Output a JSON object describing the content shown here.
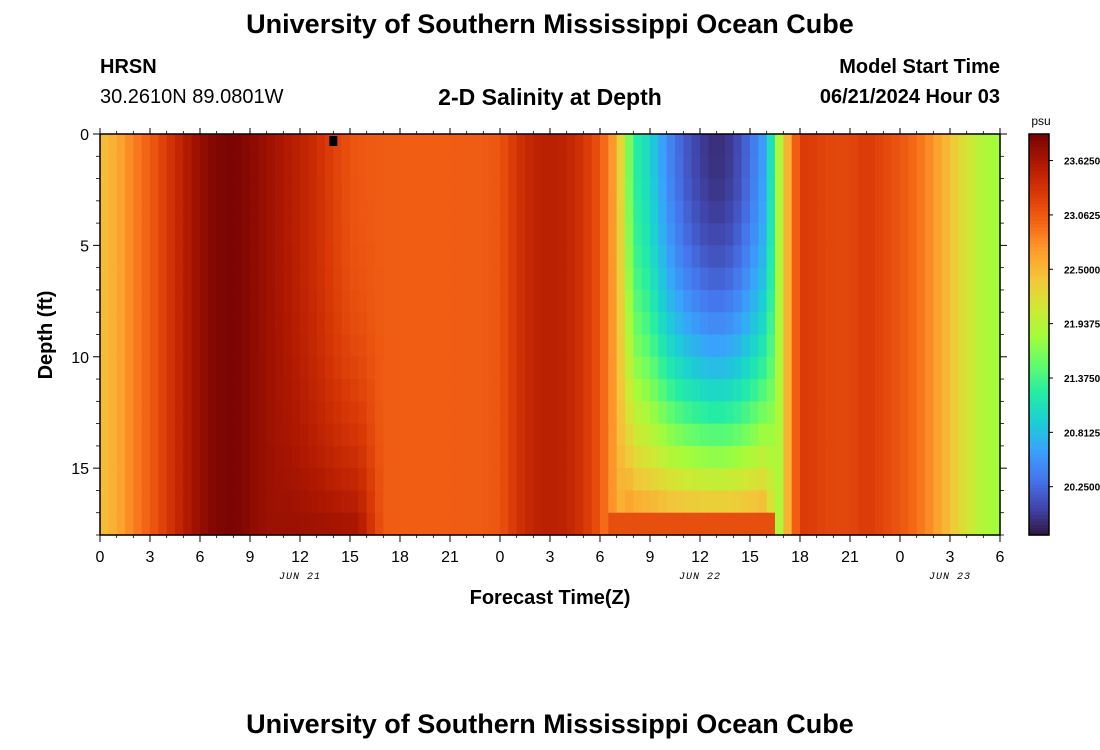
{
  "page": {
    "title": "University of Southern Mississippi Ocean Cube",
    "title_repeat": "University of Southern Mississippi Ocean Cube",
    "station": "HRSN",
    "coords": "30.2610N  89.0801W",
    "plot_title": "2-D Salinity at Depth",
    "model_start_label": "Model Start Time",
    "model_start_value": "06/21/2024 Hour 03"
  },
  "chart_data": {
    "type": "heatmap",
    "title": "2-D Salinity at Depth",
    "xlabel": "Forecast Time(Z)",
    "ylabel": "Depth (ft)",
    "x_range": [
      0,
      54
    ],
    "y_range": [
      0,
      18
    ],
    "x_ticks": [
      {
        "v": 0,
        "label": "0"
      },
      {
        "v": 3,
        "label": "3"
      },
      {
        "v": 6,
        "label": "6"
      },
      {
        "v": 9,
        "label": "9"
      },
      {
        "v": 12,
        "label": "12"
      },
      {
        "v": 15,
        "label": "15"
      },
      {
        "v": 18,
        "label": "18"
      },
      {
        "v": 21,
        "label": "21"
      },
      {
        "v": 24,
        "label": "0"
      },
      {
        "v": 27,
        "label": "3"
      },
      {
        "v": 30,
        "label": "6"
      },
      {
        "v": 33,
        "label": "9"
      },
      {
        "v": 36,
        "label": "12"
      },
      {
        "v": 39,
        "label": "15"
      },
      {
        "v": 42,
        "label": "18"
      },
      {
        "v": 45,
        "label": "21"
      },
      {
        "v": 48,
        "label": "0"
      },
      {
        "v": 51,
        "label": "3"
      },
      {
        "v": 54,
        "label": "6"
      }
    ],
    "date_labels": [
      {
        "v": 12,
        "label": "JUN 21"
      },
      {
        "v": 36,
        "label": "JUN 22"
      },
      {
        "v": 51,
        "label": "JUN 23"
      }
    ],
    "y_ticks": [
      {
        "v": 0,
        "label": "0"
      },
      {
        "v": 5,
        "label": "5"
      },
      {
        "v": 10,
        "label": "10"
      },
      {
        "v": 15,
        "label": "15"
      }
    ],
    "colorbar": {
      "unit": "psu",
      "range": [
        19.75,
        23.9
      ],
      "ticks": [
        "23.6250",
        "23.0625",
        "22.5000",
        "21.9375",
        "21.3750",
        "20.8125",
        "20.2500"
      ]
    },
    "surface_profile_psu": [
      [
        0,
        22.45
      ],
      [
        1,
        22.6
      ],
      [
        2,
        22.85
      ],
      [
        3,
        23.05
      ],
      [
        4,
        23.3
      ],
      [
        5,
        23.55
      ],
      [
        6,
        23.75
      ],
      [
        7,
        23.87
      ],
      [
        8,
        23.9
      ],
      [
        9,
        23.82
      ],
      [
        10,
        23.72
      ],
      [
        11,
        23.62
      ],
      [
        12,
        23.52
      ],
      [
        13,
        23.4
      ],
      [
        14,
        23.25
      ],
      [
        15,
        23.12
      ],
      [
        16,
        23.08
      ],
      [
        17,
        23.06
      ],
      [
        18,
        23.05
      ],
      [
        19,
        23.05
      ],
      [
        20,
        23.05
      ],
      [
        21,
        23.05
      ],
      [
        22,
        23.06
      ],
      [
        23,
        23.06
      ],
      [
        24,
        23.1
      ],
      [
        25,
        23.35
      ],
      [
        26,
        23.5
      ],
      [
        27,
        23.55
      ],
      [
        28,
        23.5
      ],
      [
        29,
        23.35
      ],
      [
        30,
        23.1
      ],
      [
        31,
        22.6
      ],
      [
        32,
        21.3
      ],
      [
        33,
        21.0
      ],
      [
        34,
        20.5
      ],
      [
        35,
        20.2
      ],
      [
        36,
        20.0
      ],
      [
        37,
        19.9
      ],
      [
        38,
        20.0
      ],
      [
        39,
        20.3
      ],
      [
        40,
        20.7
      ],
      [
        41,
        22.3
      ],
      [
        42,
        23.3
      ],
      [
        43,
        23.25
      ],
      [
        44,
        23.2
      ],
      [
        45,
        23.2
      ],
      [
        46,
        23.3
      ],
      [
        47,
        23.2
      ],
      [
        48,
        23.1
      ],
      [
        49,
        22.95
      ],
      [
        50,
        22.75
      ],
      [
        51,
        22.45
      ],
      [
        52,
        22.15
      ],
      [
        53,
        21.9
      ],
      [
        54,
        21.8
      ]
    ]
  },
  "colors": {
    "scale": [
      "#30123b",
      "#4145ab",
      "#4675ed",
      "#39a2fc",
      "#1bcfd4",
      "#24eca6",
      "#61fc6c",
      "#a4fc3b",
      "#d1e834",
      "#f3c63a",
      "#fe9b2d",
      "#f36315",
      "#d93806",
      "#b11901",
      "#7a0403"
    ]
  }
}
